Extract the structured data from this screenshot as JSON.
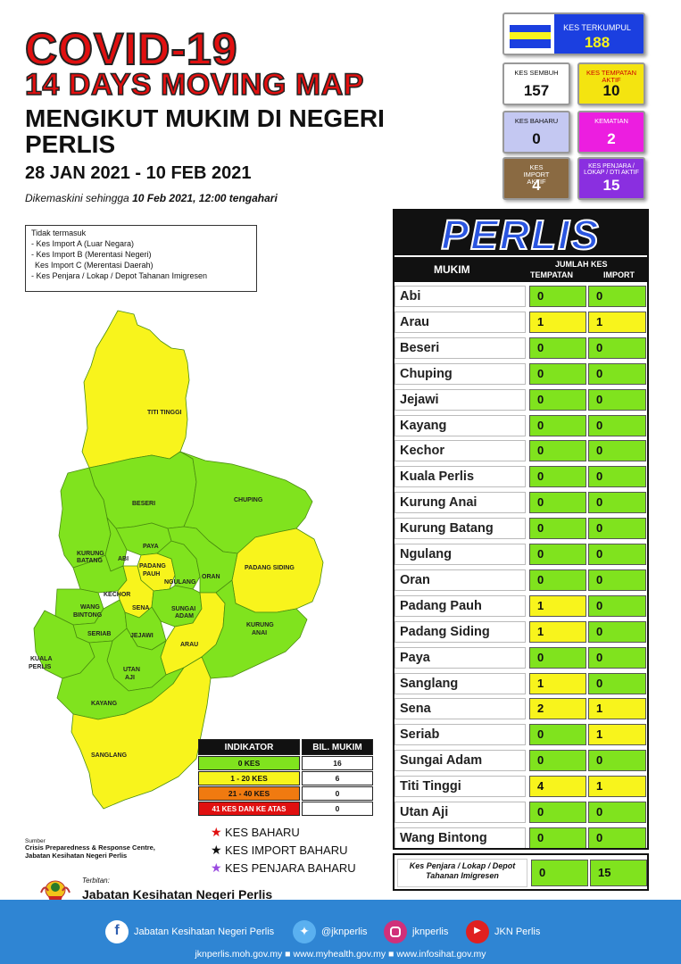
{
  "header": {
    "title_line1": "COVID-19",
    "title_line2": "14 DAYS MOVING MAP",
    "subtitle": "MENGIKUT MUKIM DI NEGERI PERLIS",
    "date_range": "28 JAN 2021 - 10 FEB 2021",
    "updated_prefix": "Dikemaskini sehingga ",
    "updated_value": "10 Feb 2021, 12:00 tengahari"
  },
  "stats": {
    "terkumpul": {
      "label": "KES TERKUMPUL",
      "value": "188",
      "color": "#1b3fe0"
    },
    "sembuh": {
      "label": "KES SEMBUH",
      "value": "157",
      "color": "#ffffff"
    },
    "tempatan_aktif": {
      "label": "KES TEMPATAN AKTIF",
      "value": "10",
      "color": "#f4e410"
    },
    "baharu": {
      "label": "KES BAHARU",
      "value": "0",
      "color": "#c4c8f2"
    },
    "kematian": {
      "label": "KEMATIAN",
      "value": "2",
      "color": "#ec1ee0"
    },
    "import_aktif": {
      "label": "KES IMPORT AKTIF",
      "value": "4",
      "color": "#8a6a42"
    },
    "penjara_aktif": {
      "label": "KES PENJARA / LOKAP / DTI AKTIF",
      "value": "15",
      "color": "#8a2fe0"
    }
  },
  "note": {
    "heading": "Tidak termasuk",
    "items": [
      "- Kes Import A (Luar Negara)",
      "- Kes Import B (Merentasi Negeri)",
      "  Kes Import C (Merentasi Daerah)",
      "- Kes Penjara / Lokap / Depot Tahanan Imigresen"
    ]
  },
  "map": {
    "labels": {
      "titi_tinggi": "TITI TINGGI",
      "beseri": "BESERI",
      "chuping": "CHUPING",
      "kurung_batang_1": "KURUNG",
      "kurung_batang_2": "BATANG",
      "abi": "ABI",
      "paya": "PAYA",
      "padang_pauh_1": "PADANG",
      "padang_pauh_2": "PAUH",
      "ngulang": "NGULANG",
      "oran": "ORAN",
      "padang_siding": "PADANG SIDING",
      "kechor": "KECHOR",
      "wang_bintong_1": "WANG",
      "wang_bintong_2": "BINTONG",
      "sena": "SENA",
      "sungai_adam_1": "SUNGAI",
      "sungai_adam_2": "ADAM",
      "kurung_anai_1": "KURUNG",
      "kurung_anai_2": "ANAI",
      "seriab": "SERIAB",
      "jejawi": "JEJAWI",
      "arau": "ARAU",
      "kuala_perlis_1": "KUALA",
      "kuala_perlis_2": "PERLIS",
      "utan_aji_1": "UTAN",
      "utan_aji_2": "AJI",
      "kayang": "KAYANG",
      "sanglang": "SANGLANG"
    },
    "colors": {
      "green": "#80e31e",
      "yellow": "#f8f41c",
      "border": "#4a8c10"
    }
  },
  "legend": {
    "head_indikator": "INDIKATOR",
    "head_bil": "BIL. MUKIM",
    "rows": [
      {
        "label": "0 KES",
        "count": "16",
        "color": "#80e31e"
      },
      {
        "label": "1 - 20 KES",
        "count": "6",
        "color": "#f8f41c"
      },
      {
        "label": "21 - 40 KES",
        "count": "0",
        "color": "#f07a10"
      },
      {
        "label": "41 KES DAN KE ATAS",
        "count": "0",
        "color": "#e01010"
      }
    ],
    "stars": [
      {
        "label": "KES BAHARU",
        "color": "#e01010"
      },
      {
        "label": "KES IMPORT BAHARU",
        "color": "#111111"
      },
      {
        "label": "KES PENJARA BAHARU",
        "color": "#9a4ae0"
      }
    ]
  },
  "source": {
    "label": "Sumber",
    "line1": "Crisis Preparedness & Response Centre,",
    "line2": "Jabatan Kesihatan Negeri Perlis"
  },
  "publisher": {
    "label": "Terbitan:",
    "name": "Jabatan Kesihatan Negeri Perlis"
  },
  "table": {
    "title": "PERLIS",
    "col_mukim": "MUKIM",
    "col_jumlah": "JUMLAH KES",
    "col_tempatan": "TEMPATAN",
    "col_import": "IMPORT",
    "rows": [
      {
        "mukim": "Abi",
        "tempatan": "0",
        "import": "0"
      },
      {
        "mukim": "Arau",
        "tempatan": "1",
        "import": "1"
      },
      {
        "mukim": "Beseri",
        "tempatan": "0",
        "import": "0"
      },
      {
        "mukim": "Chuping",
        "tempatan": "0",
        "import": "0"
      },
      {
        "mukim": "Jejawi",
        "tempatan": "0",
        "import": "0"
      },
      {
        "mukim": "Kayang",
        "tempatan": "0",
        "import": "0"
      },
      {
        "mukim": "Kechor",
        "tempatan": "0",
        "import": "0"
      },
      {
        "mukim": "Kuala Perlis",
        "tempatan": "0",
        "import": "0"
      },
      {
        "mukim": "Kurung Anai",
        "tempatan": "0",
        "import": "0"
      },
      {
        "mukim": "Kurung Batang",
        "tempatan": "0",
        "import": "0"
      },
      {
        "mukim": "Ngulang",
        "tempatan": "0",
        "import": "0"
      },
      {
        "mukim": "Oran",
        "tempatan": "0",
        "import": "0"
      },
      {
        "mukim": "Padang Pauh",
        "tempatan": "1",
        "import": "0"
      },
      {
        "mukim": "Padang Siding",
        "tempatan": "1",
        "import": "0"
      },
      {
        "mukim": "Paya",
        "tempatan": "0",
        "import": "0"
      },
      {
        "mukim": "Sanglang",
        "tempatan": "1",
        "import": "0"
      },
      {
        "mukim": "Sena",
        "tempatan": "2",
        "import": "1"
      },
      {
        "mukim": "Seriab",
        "tempatan": "0",
        "import": "1"
      },
      {
        "mukim": "Sungai Adam",
        "tempatan": "0",
        "import": "0"
      },
      {
        "mukim": "Titi Tinggi",
        "tempatan": "4",
        "import": "1"
      },
      {
        "mukim": "Utan Aji",
        "tempatan": "0",
        "import": "0"
      },
      {
        "mukim": "Wang Bintong",
        "tempatan": "0",
        "import": "0"
      }
    ],
    "penjara": {
      "label": "Kes Penjara / Lokap / Depot Tahanan Imigresen",
      "tempatan": "0",
      "import": "15"
    }
  },
  "footer": {
    "facebook": "Jabatan Kesihatan Negeri Perlis",
    "twitter": "@jknperlis",
    "instagram": "jknperlis",
    "youtube": "JKN Perlis",
    "urls": "jknperlis.moh.gov.my ■ www.myhealth.gov.my ■ www.infosihat.gov.my"
  }
}
